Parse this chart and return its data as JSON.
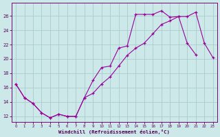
{
  "background_color": "#cce8e8",
  "grid_color": "#aacccc",
  "line_color": "#990099",
  "xlabel": "Windchill (Refroidissement éolien,°C)",
  "xlim": [
    -0.5,
    23.5
  ],
  "ylim": [
    11.2,
    27.8
  ],
  "yticks": [
    12,
    14,
    16,
    18,
    20,
    22,
    24,
    26
  ],
  "xticks": [
    0,
    1,
    2,
    3,
    4,
    5,
    6,
    7,
    8,
    9,
    10,
    11,
    12,
    13,
    14,
    15,
    16,
    17,
    18,
    19,
    20,
    21,
    22,
    23
  ],
  "series1_x": [
    0,
    1,
    2,
    3,
    4,
    5,
    6,
    7,
    8,
    9,
    10,
    11,
    12,
    13,
    14,
    15,
    16,
    17,
    18,
    19,
    20,
    21
  ],
  "series1_y": [
    16.5,
    14.6,
    13.8,
    12.5,
    11.8,
    12.3,
    12.0,
    12.0,
    14.6,
    17.0,
    18.8,
    19.0,
    21.5,
    21.8,
    26.2,
    26.2,
    26.2,
    26.7,
    25.8,
    25.9,
    22.2,
    20.6
  ],
  "series2_x": [
    0,
    1,
    2,
    3,
    4,
    5,
    6,
    7,
    8,
    9,
    10,
    11,
    12,
    13,
    14,
    15,
    16,
    17,
    18,
    19,
    20,
    21,
    22,
    23
  ],
  "series2_y": [
    16.5,
    14.6,
    13.8,
    12.5,
    11.8,
    12.3,
    12.0,
    12.0,
    14.6,
    15.2,
    16.5,
    17.5,
    19.0,
    20.5,
    21.5,
    22.2,
    23.5,
    24.8,
    25.3,
    25.9,
    25.9,
    26.5,
    22.2,
    20.2
  ]
}
